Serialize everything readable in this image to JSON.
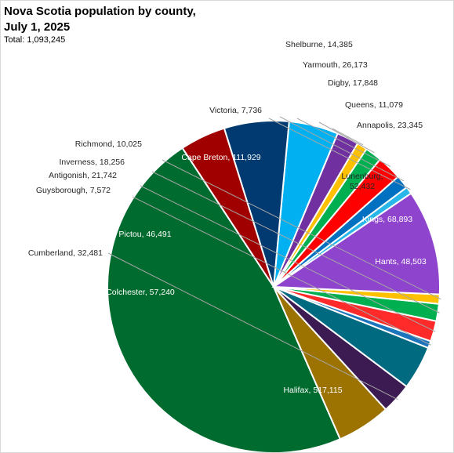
{
  "chart_data": {
    "type": "pie",
    "title": "Nova Scotia population by county, July 1, 2025",
    "subtitle": "Total: 1,093,245",
    "slices": [
      {
        "label": "Halifax",
        "value": 517115,
        "display": "Halifax, 517,115",
        "color": "#006B2E"
      },
      {
        "label": "Colchester",
        "value": 57240,
        "display": "Colchester, 57,240",
        "color": "#9C7200"
      },
      {
        "label": "Cumberland",
        "value": 32481,
        "display": "Cumberland, 32,481",
        "color": "#3B1B52"
      },
      {
        "label": "Pictou",
        "value": 46491,
        "display": "Pictou, 46,491",
        "color": "#006A80"
      },
      {
        "label": "Guysborough",
        "value": 7572,
        "display": "Guysborough, 7,572",
        "color": "#1C75BC"
      },
      {
        "label": "Antigonish",
        "value": 21742,
        "display": "Antigonish, 21,742",
        "color": "#FF2A2A"
      },
      {
        "label": "Inverness",
        "value": 18256,
        "display": "Inverness, 18,256",
        "color": "#00B050"
      },
      {
        "label": "Richmond",
        "value": 10025,
        "display": "Richmond, 10,025",
        "color": "#FFC000"
      },
      {
        "label": "Cape Breton",
        "value": 111929,
        "display": "Cape Breton, 111,929",
        "color": "#8E44CC"
      },
      {
        "label": "Victoria",
        "value": 7736,
        "display": "Victoria, 7,736",
        "color": "#29B6E8"
      },
      {
        "label": "Shelburne",
        "value": 14385,
        "display": "Shelburne, 14,385",
        "color": "#0070C0"
      },
      {
        "label": "Yarmouth",
        "value": 26173,
        "display": "Yarmouth, 26,173",
        "color": "#FF0000"
      },
      {
        "label": "Digby",
        "value": 17848,
        "display": "Digby, 17,848",
        "color": "#00B050"
      },
      {
        "label": "Queens",
        "value": 11079,
        "display": "Queens, 11,079",
        "color": "#FFC000"
      },
      {
        "label": "Annapolis",
        "value": 23345,
        "display": "Annapolis, 23,345",
        "color": "#7030A0"
      },
      {
        "label": "Lunenburg",
        "value": 52432,
        "display": "Lunenburg, 52,432",
        "color": "#00B0F0"
      },
      {
        "label": "Kings",
        "value": 68893,
        "display": "Kings, 68,893",
        "color": "#003A70"
      },
      {
        "label": "Hants",
        "value": 48503,
        "display": "Hants, 48,503",
        "color": "#A00000"
      }
    ]
  }
}
